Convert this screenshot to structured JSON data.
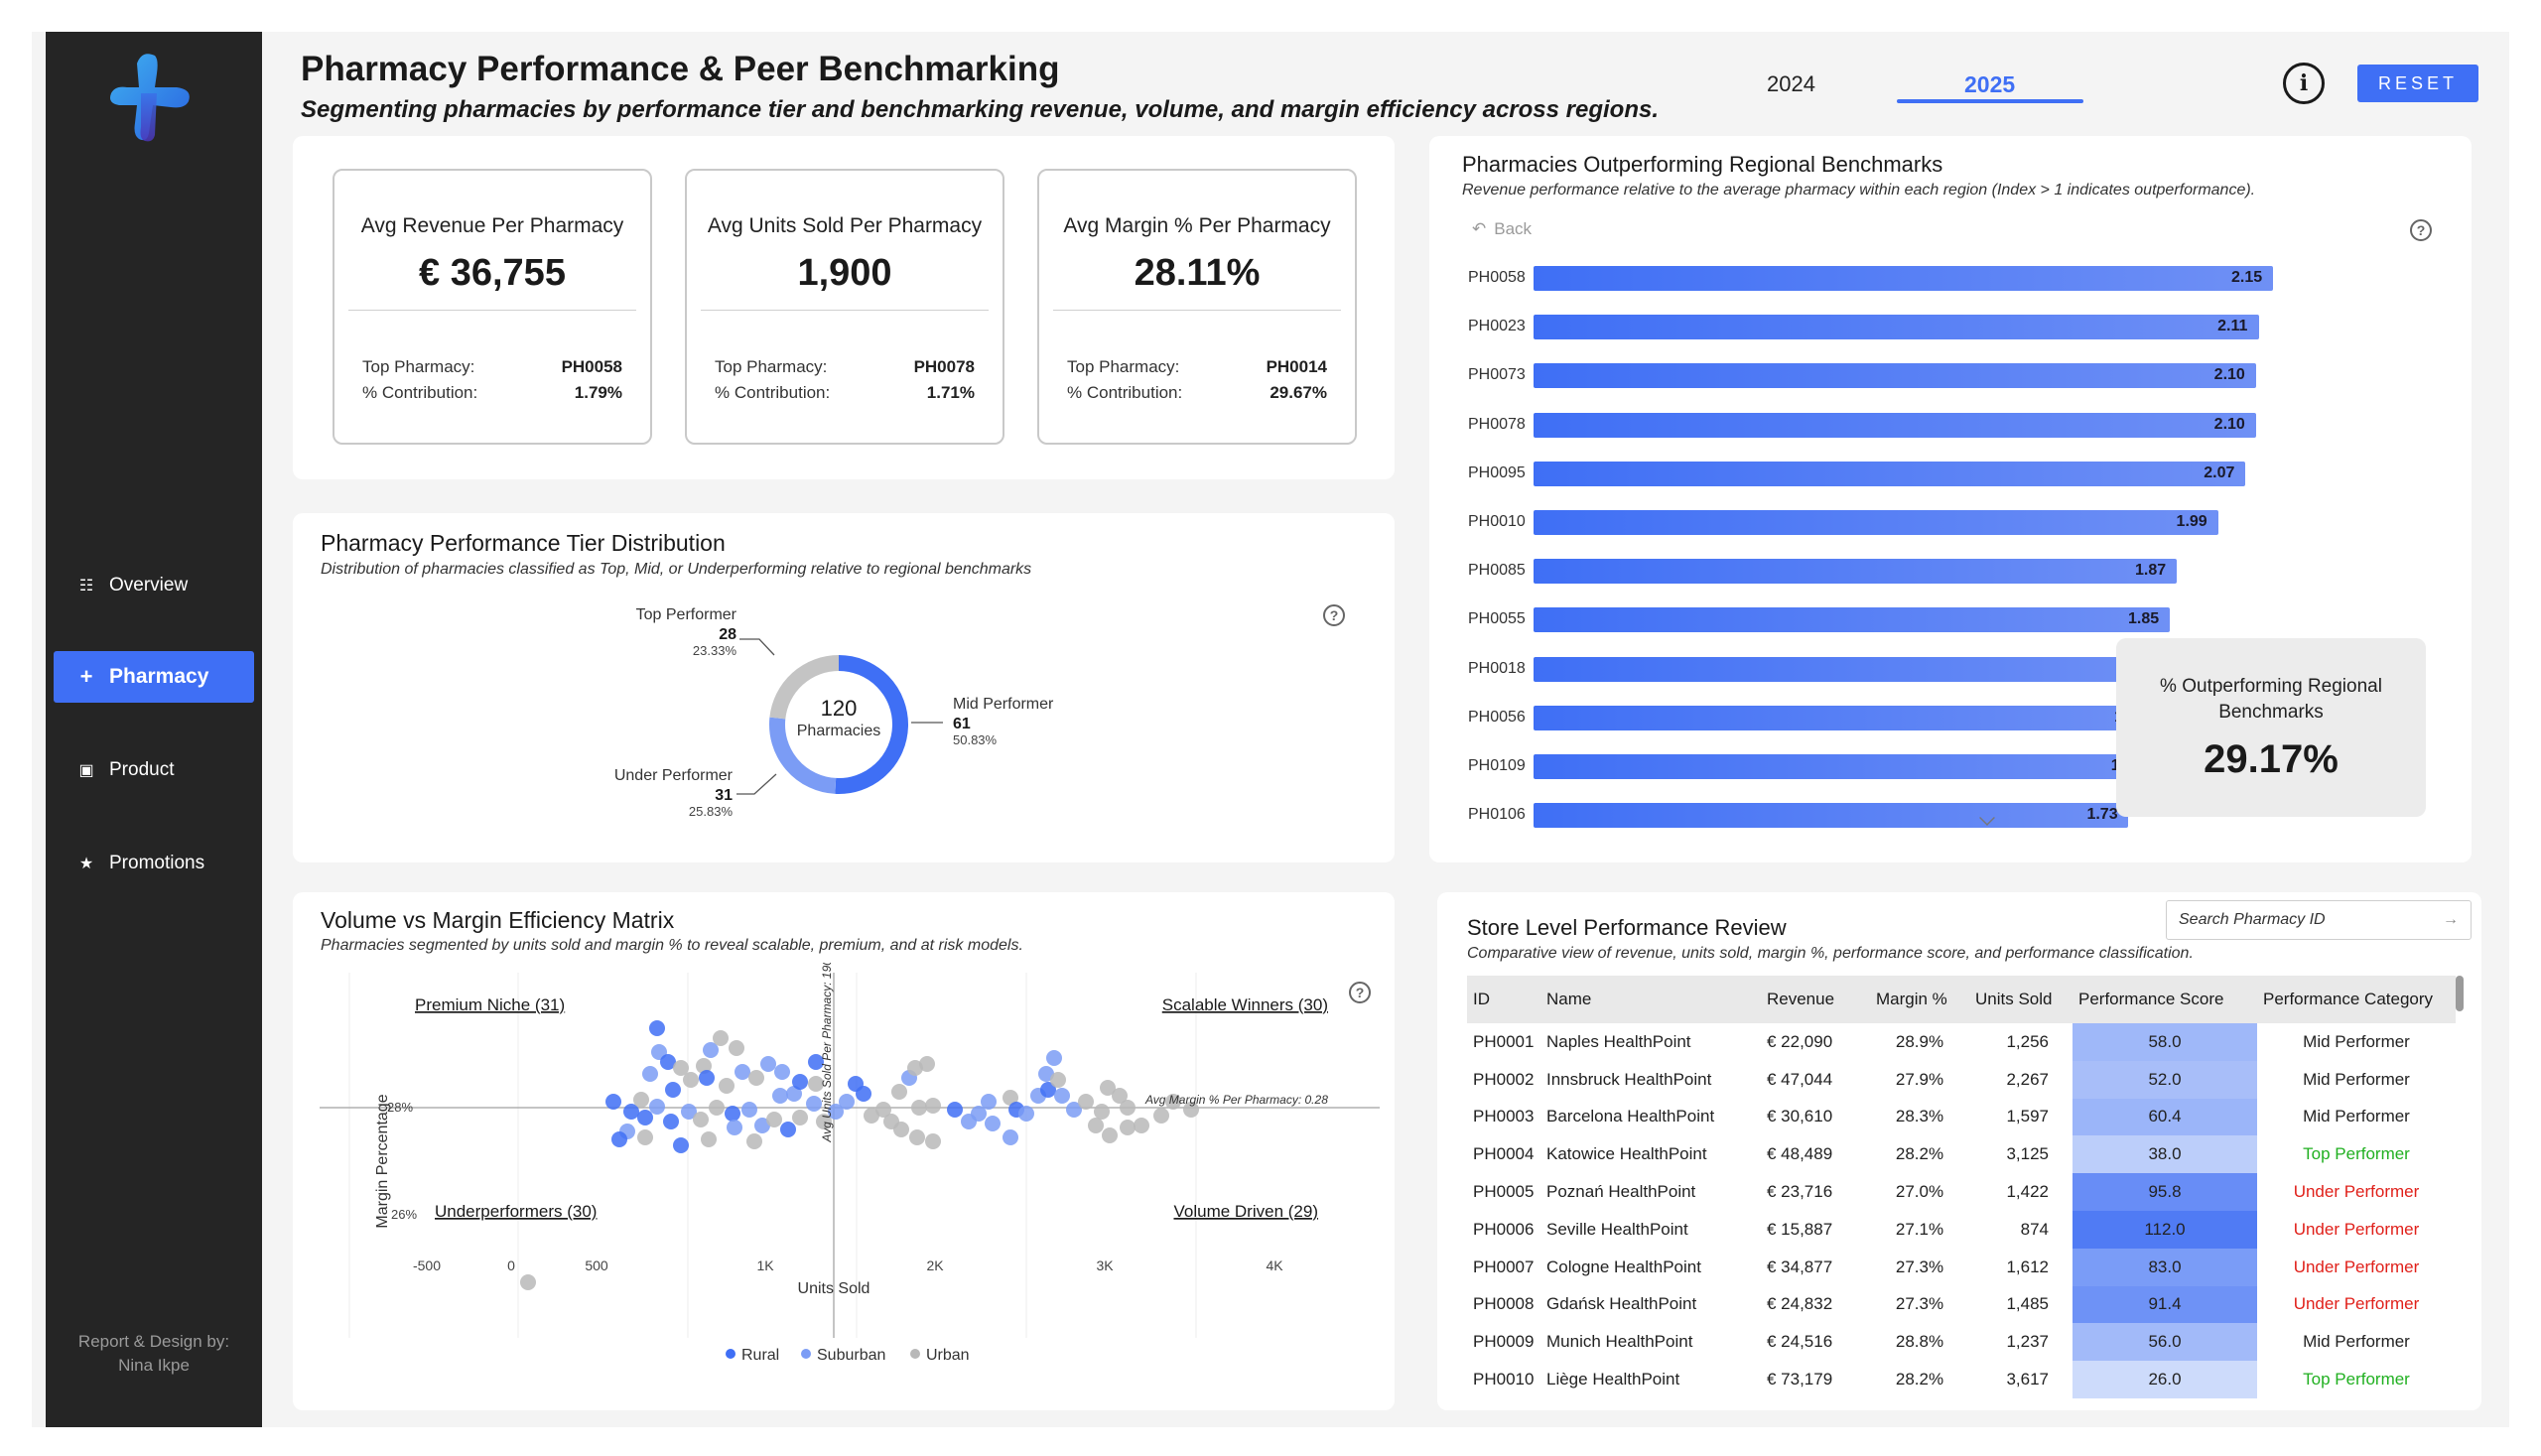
{
  "header": {
    "title": "Pharmacy Performance & Peer Benchmarking",
    "subtitle": "Segmenting pharmacies by performance tier and benchmarking revenue, volume, and margin efficiency across regions.",
    "years": [
      "2024",
      "2025"
    ],
    "selected_year": "2025",
    "info_icon": "info-icon",
    "reset_label": "RESET",
    "accent_color": "#3f6ff5"
  },
  "sidebar": {
    "items": [
      {
        "label": "Overview",
        "icon": "list-icon"
      },
      {
        "label": "Pharmacy",
        "icon": "plus-icon"
      },
      {
        "label": "Product",
        "icon": "box-icon"
      },
      {
        "label": "Promotions",
        "icon": "star-icon"
      }
    ],
    "credit_line1": "Report & Design by:",
    "credit_line2": "Nina Ikpe"
  },
  "kpis": [
    {
      "label": "Avg Revenue Per Pharmacy",
      "value": "€ 36,755",
      "top_label": "Top Pharmacy:",
      "top_value": "PH0058",
      "contrib_label": "% Contribution:",
      "contrib_value": "1.79%"
    },
    {
      "label": "Avg Units Sold Per Pharmacy",
      "value": "1,900",
      "top_label": "Top Pharmacy:",
      "top_value": "PH0078",
      "contrib_label": "% Contribution:",
      "contrib_value": "1.71%"
    },
    {
      "label": "Avg Margin % Per Pharmacy",
      "value": "28.11%",
      "top_label": "Top Pharmacy:",
      "top_value": "PH0014",
      "contrib_label": "% Contribution:",
      "contrib_value": "29.67%"
    }
  ],
  "tier": {
    "title": "Pharmacy Performance Tier Distribution",
    "subtitle": "Distribution of pharmacies classified as Top, Mid, or Underperforming relative to regional benchmarks",
    "center_value": "120",
    "center_label": "Pharmacies",
    "segments": [
      {
        "name": "Top Performer",
        "count": "28",
        "pct": "23.33%",
        "value": 28,
        "color": "#c4c4c4"
      },
      {
        "name": "Mid Performer",
        "count": "61",
        "pct": "50.83%",
        "value": 61,
        "color": "#3f6ff5"
      },
      {
        "name": "Under Performer",
        "count": "31",
        "pct": "25.83%",
        "value": 31,
        "color": "#7b9cf5"
      }
    ]
  },
  "matrix": {
    "title": "Volume vs Margin Efficiency Matrix",
    "subtitle": "Pharmacies segmented by units sold and margin % to reveal scalable, premium, and at risk models.",
    "quadrants": {
      "premium": "Premium Niche (31)",
      "scalable": "Scalable Winners (30)",
      "under": "Underperformers (30)",
      "volume": "Volume Driven (29)"
    },
    "ylabel": "Margin Percentage",
    "xlabel": "Units Sold",
    "y_ticks": [
      "28%",
      "26%"
    ],
    "x_ticks": [
      "-500",
      "0",
      "500",
      "1K",
      "2K",
      "3K",
      "4K"
    ],
    "ref_v": "Avg Units Sold Per Pharmacy: 1900",
    "ref_h": "Avg Margin % Per Pharmacy: 0.28",
    "legend": [
      {
        "name": "Rural",
        "color": "#3f6ff5"
      },
      {
        "name": "Suburban",
        "color": "#7b9cf5"
      },
      {
        "name": "Urban",
        "color": "#b8b8b8"
      }
    ]
  },
  "outperf": {
    "title": "Pharmacies Outperforming Regional Benchmarks",
    "subtitle": "Revenue performance relative to the average pharmacy within each region (Index > 1 indicates outperformance).",
    "back_label": "Back",
    "kpi_label": "% Outperforming Regional Benchmarks",
    "kpi_value": "29.17%"
  },
  "chart_data": {
    "type": "bar",
    "orientation": "horizontal",
    "categories": [
      "PH0058",
      "PH0023",
      "PH0073",
      "PH0078",
      "PH0095",
      "PH0010",
      "PH0085",
      "PH0055",
      "PH0018",
      "PH0056",
      "PH0109",
      "PH0106"
    ],
    "values": [
      2.15,
      2.11,
      2.1,
      2.1,
      2.07,
      1.99,
      1.87,
      1.85,
      1.85,
      1.81,
      1.8,
      1.73
    ],
    "value_labels": [
      "2.15",
      "2.11",
      "2.10",
      "2.10",
      "2.07",
      "1.99",
      "1.87",
      "1.85",
      "1.85",
      "1.81",
      "1.80",
      "1.73"
    ]
  },
  "review": {
    "title": "Store Level Performance Review",
    "subtitle": "Comparative view of revenue, units sold, margin %, performance score, and performance classification.",
    "search_placeholder": "Search Pharmacy ID",
    "columns": [
      "ID",
      "Name",
      "Revenue",
      "Margin %",
      "Units Sold",
      "Performance Score",
      "Performance Category"
    ],
    "rows": [
      {
        "id": "PH0001",
        "name": "Naples HealthPoint",
        "revenue": "€ 22,090",
        "margin": "28.9%",
        "units": "1,256",
        "score": "58.0",
        "score_value": 58.0,
        "category": "Mid Performer",
        "cat_color": "#222222"
      },
      {
        "id": "PH0002",
        "name": "Innsbruck HealthPoint",
        "revenue": "€ 47,044",
        "margin": "27.9%",
        "units": "2,267",
        "score": "52.0",
        "score_value": 52.0,
        "category": "Mid Performer",
        "cat_color": "#222222"
      },
      {
        "id": "PH0003",
        "name": "Barcelona HealthPoint",
        "revenue": "€ 30,610",
        "margin": "28.3%",
        "units": "1,597",
        "score": "60.4",
        "score_value": 60.4,
        "category": "Mid Performer",
        "cat_color": "#222222"
      },
      {
        "id": "PH0004",
        "name": "Katowice HealthPoint",
        "revenue": "€ 48,489",
        "margin": "28.2%",
        "units": "3,125",
        "score": "38.0",
        "score_value": 38.0,
        "category": "Top Performer",
        "cat_color": "#21b021"
      },
      {
        "id": "PH0005",
        "name": "Poznań HealthPoint",
        "revenue": "€ 23,716",
        "margin": "27.0%",
        "units": "1,422",
        "score": "95.8",
        "score_value": 95.8,
        "category": "Under Performer",
        "cat_color": "#e0201a"
      },
      {
        "id": "PH0006",
        "name": "Seville HealthPoint",
        "revenue": "€ 15,887",
        "margin": "27.1%",
        "units": "874",
        "score": "112.0",
        "score_value": 112.0,
        "category": "Under Performer",
        "cat_color": "#e0201a"
      },
      {
        "id": "PH0007",
        "name": "Cologne HealthPoint",
        "revenue": "€ 34,877",
        "margin": "27.3%",
        "units": "1,612",
        "score": "83.0",
        "score_value": 83.0,
        "category": "Under Performer",
        "cat_color": "#e0201a"
      },
      {
        "id": "PH0008",
        "name": "Gdańsk HealthPoint",
        "revenue": "€ 24,832",
        "margin": "27.3%",
        "units": "1,485",
        "score": "91.4",
        "score_value": 91.4,
        "category": "Under Performer",
        "cat_color": "#e0201a"
      },
      {
        "id": "PH0009",
        "name": "Munich HealthPoint",
        "revenue": "€ 24,516",
        "margin": "28.8%",
        "units": "1,237",
        "score": "56.0",
        "score_value": 56.0,
        "category": "Mid Performer",
        "cat_color": "#222222"
      },
      {
        "id": "PH0010",
        "name": "Liège HealthPoint",
        "revenue": "€ 73,179",
        "margin": "28.2%",
        "units": "3,617",
        "score": "26.0",
        "score_value": 26.0,
        "category": "Top Performer",
        "cat_color": "#21b021"
      }
    ]
  }
}
